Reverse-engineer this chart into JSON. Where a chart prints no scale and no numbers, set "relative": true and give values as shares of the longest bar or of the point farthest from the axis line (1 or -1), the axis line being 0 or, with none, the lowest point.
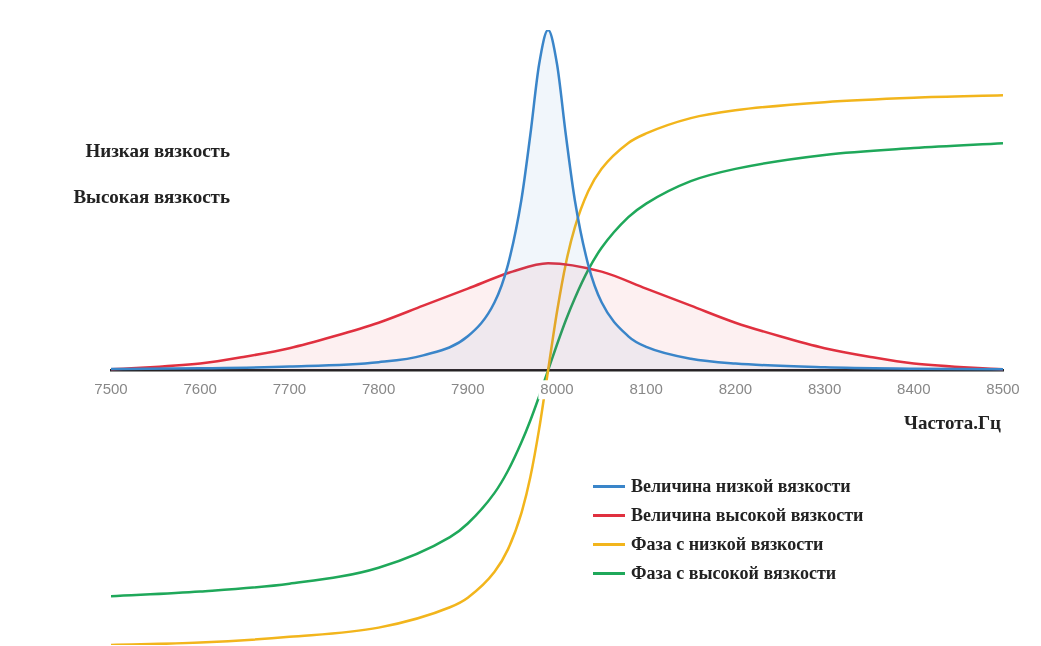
{
  "chart_data": {
    "type": "line",
    "relative": true,
    "xlabel": "Частота.Гц",
    "xlim": [
      7500,
      8500
    ],
    "xticks": [
      7500,
      7600,
      7700,
      7800,
      7900,
      8000,
      8100,
      8200,
      8300,
      8400,
      8500
    ],
    "grid": false,
    "legend": "bottom right",
    "marker": "none",
    "line_style": "solid",
    "tick_labels": "x",
    "annotations": [
      "Низкая вязкость",
      "Высокая вязкость"
    ],
    "series": [
      {
        "name": "Величина низкой вязкости",
        "color": "#3a85c9",
        "type": "area",
        "x": [
          7500,
          7600,
          7700,
          7800,
          7850,
          7900,
          7930,
          7945,
          7960,
          7970,
          7980,
          7990,
          8000,
          8010,
          8020,
          8035,
          8050,
          8080,
          8100,
          8150,
          8200,
          8300,
          8400,
          8500
        ],
        "values": [
          0.004,
          0.006,
          0.011,
          0.024,
          0.044,
          0.1,
          0.2,
          0.31,
          0.5,
          0.69,
          0.9,
          1,
          0.9,
          0.69,
          0.5,
          0.31,
          0.2,
          0.1,
          0.069,
          0.034,
          0.02,
          0.009,
          0.005,
          0.003
        ]
      },
      {
        "name": "Величина высокой вязкости",
        "color": "#e0303f",
        "type": "area",
        "x": [
          7500,
          7600,
          7650,
          7700,
          7750,
          7800,
          7850,
          7900,
          7950,
          7990,
          8050,
          8100,
          8150,
          8200,
          8250,
          8300,
          8350,
          8400,
          8500
        ],
        "values": [
          0.003,
          0.02,
          0.04,
          0.065,
          0.1,
          0.14,
          0.19,
          0.24,
          0.29,
          0.315,
          0.29,
          0.24,
          0.19,
          0.14,
          0.1,
          0.065,
          0.04,
          0.02,
          0.003
        ]
      },
      {
        "name": "Фаза с низкой вязкости",
        "color": "#f2b51c",
        "x": [
          7500,
          7600,
          7700,
          7800,
          7880,
          7900,
          7930,
          7945,
          7960,
          7970,
          7980,
          7990,
          8000,
          8010,
          8020,
          8035,
          8050,
          8080,
          8100,
          8150,
          8200,
          8300,
          8400,
          8500
        ],
        "values": [
          -0.807,
          -0.8,
          -0.783,
          -0.756,
          -0.696,
          -0.668,
          -0.592,
          -0.526,
          -0.42,
          -0.315,
          -0.172,
          0,
          0.172,
          0.315,
          0.42,
          0.526,
          0.592,
          0.668,
          0.696,
          0.741,
          0.764,
          0.788,
          0.801,
          0.808
        ]
      },
      {
        "name": "Фаза с высокой вязкости",
        "color": "#1fa85a",
        "x": [
          7500,
          7600,
          7700,
          7800,
          7880,
          7900,
          7930,
          7945,
          7960,
          7970,
          7980,
          7990,
          8000,
          8010,
          8020,
          8035,
          8050,
          8080,
          8100,
          8150,
          8200,
          8300,
          8400,
          8500
        ],
        "values": [
          -0.664,
          -0.65,
          -0.627,
          -0.58,
          -0.49,
          -0.45,
          -0.36,
          -0.295,
          -0.212,
          -0.148,
          -0.076,
          0,
          0.076,
          0.148,
          0.212,
          0.295,
          0.36,
          0.45,
          0.49,
          0.556,
          0.592,
          0.633,
          0.653,
          0.667
        ]
      }
    ]
  }
}
